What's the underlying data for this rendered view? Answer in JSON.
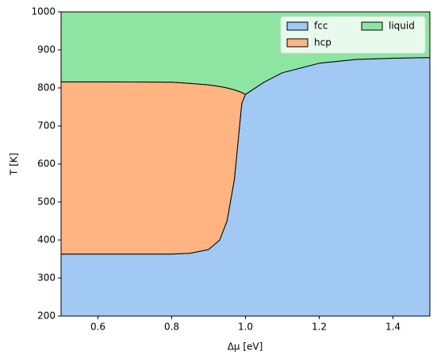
{
  "chart_data": {
    "type": "fill_between",
    "xlabel": "Δμ [eV]",
    "ylabel": "T [K]",
    "xlim": [
      0.5,
      1.5
    ],
    "ylim": [
      200,
      1000
    ],
    "xticks": [
      0.6,
      0.8,
      {
        "value": 1,
        "label": "1.0"
      },
      1.2,
      1.4
    ],
    "yticks": [
      200,
      300,
      400,
      500,
      600,
      700,
      800,
      900,
      1000
    ],
    "legend": "upper right",
    "series": [
      {
        "name": "fcc",
        "color": "#a1c9f4",
        "x": [
          0.5,
          0.6,
          0.7,
          0.8,
          0.85,
          0.9,
          0.93,
          0.95,
          0.97,
          0.99,
          1.0,
          1.05,
          1.1,
          1.2,
          1.3,
          1.4,
          1.5
        ],
        "upper": [
          363,
          363,
          363,
          363,
          365,
          375,
          400,
          450,
          560,
          760,
          783,
          815,
          840,
          865,
          875,
          878,
          880
        ]
      },
      {
        "name": "hcp",
        "color": "#ffb482",
        "x": [
          0.5,
          0.6,
          0.7,
          0.8,
          0.85,
          0.9,
          0.93,
          0.95,
          0.97,
          0.99,
          1.0
        ],
        "lower": [
          363,
          363,
          363,
          363,
          365,
          375,
          400,
          450,
          560,
          760,
          783
        ],
        "upper": [
          816,
          816,
          815.5,
          815,
          812,
          808,
          804,
          800,
          795,
          788,
          783
        ]
      },
      {
        "name": "liquid",
        "color": "#8de5a1",
        "x": [
          0.5,
          0.6,
          0.7,
          0.8,
          0.85,
          0.9,
          0.93,
          0.95,
          0.97,
          0.99,
          1.0,
          1.05,
          1.1,
          1.2,
          1.3,
          1.4,
          1.5
        ],
        "lower": [
          816,
          816,
          815.5,
          815,
          812,
          808,
          804,
          800,
          795,
          788,
          783,
          815,
          840,
          865,
          875,
          878,
          880
        ]
      }
    ]
  }
}
